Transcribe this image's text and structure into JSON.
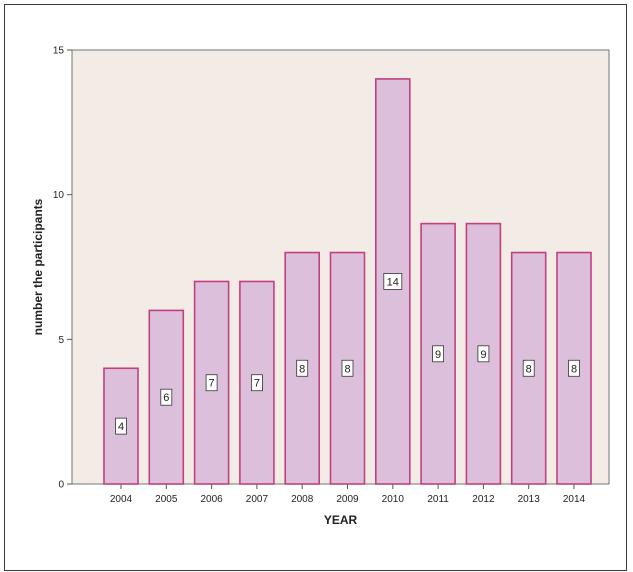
{
  "chart_data": {
    "type": "bar",
    "categories": [
      "2004",
      "2005",
      "2006",
      "2007",
      "2008",
      "2009",
      "2010",
      "2011",
      "2012",
      "2013",
      "2014"
    ],
    "values": [
      4,
      6,
      7,
      7,
      8,
      8,
      14,
      9,
      9,
      8,
      8
    ],
    "data_labels": [
      "4",
      "6",
      "7",
      "7",
      "8",
      "8",
      "14",
      "9",
      "9",
      "8",
      "8"
    ],
    "title": "",
    "xlabel": "YEAR",
    "ylabel": "number the participants",
    "ylim": [
      0,
      15
    ],
    "yticks": [
      0,
      5,
      10,
      15
    ],
    "ytick_labels": [
      "0",
      "5",
      "10",
      "15"
    ],
    "grid": false,
    "legend": "none",
    "colors": {
      "plot_background": "#f3ece6",
      "bar_fill": "#dcc0db",
      "bar_stroke": "#c2407e",
      "axis": "#555555"
    }
  }
}
